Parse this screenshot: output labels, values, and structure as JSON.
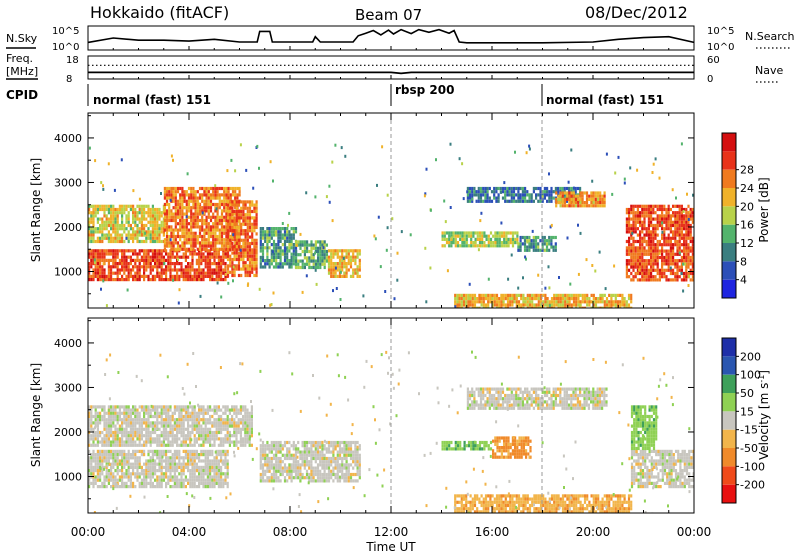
{
  "header": {
    "station": "Hokkaido (fitACF)",
    "beam": "Beam 07",
    "date": "08/Dec/2012"
  },
  "top_labels": {
    "nsky": "N.Sky",
    "nsearch": "N.Search",
    "freq_line1": "Freq.",
    "freq_line2": "[MHz]",
    "nave": "Nave",
    "cpid": "CPID"
  },
  "cpid_modes": [
    {
      "label": "normal (fast) 151",
      "start_hour": 0
    },
    {
      "label": "rbsp 200",
      "start_hour": 12
    },
    {
      "label": "normal (fast) 151",
      "start_hour": 18
    }
  ],
  "colors": {
    "power_scale": [
      "#1f25e0",
      "#2c4fb8",
      "#3a7e80",
      "#53b36c",
      "#b8d24a",
      "#f0b22a",
      "#f07a1f",
      "#e8321a",
      "#d40f10"
    ],
    "velocity_scale": [
      "#e81010",
      "#f04a1a",
      "#f08a2a",
      "#f2b54b",
      "#c8c6bf",
      "#8fd154",
      "#3ea05a",
      "#2a56b0",
      "#1e2fa8"
    ]
  },
  "chart_data": [
    {
      "type": "line",
      "panel": "noise",
      "left_ticks": [
        "10^5",
        "10^0"
      ],
      "right_ticks": [
        "10^5",
        "10^0"
      ],
      "series": [
        {
          "name": "N.Sky",
          "points": [
            [
              0,
              1.5
            ],
            [
              1,
              2.5
            ],
            [
              2,
              2
            ],
            [
              3,
              2
            ],
            [
              4,
              1.8
            ],
            [
              5,
              2.2
            ],
            [
              6,
              1.6
            ],
            [
              6.7,
              1.6
            ],
            [
              6.8,
              4
            ],
            [
              7.2,
              4
            ],
            [
              7.3,
              1.6
            ],
            [
              8.9,
              1.6
            ],
            [
              9,
              2.8
            ],
            [
              9.2,
              1.6
            ],
            [
              10.5,
              1.6
            ],
            [
              10.7,
              3
            ],
            [
              11,
              3.6
            ],
            [
              11.3,
              4.2
            ],
            [
              11.6,
              3.2
            ],
            [
              11.9,
              4.3
            ],
            [
              12.1,
              3.4
            ],
            [
              12.4,
              4.4
            ],
            [
              12.8,
              3.5
            ],
            [
              13.1,
              4.4
            ],
            [
              13.5,
              3.8
            ],
            [
              13.9,
              4.4
            ],
            [
              14.3,
              3.6
            ],
            [
              14.5,
              4.2
            ],
            [
              14.7,
              1.6
            ],
            [
              15,
              1.4
            ],
            [
              18,
              1.4
            ],
            [
              20,
              1.6
            ],
            [
              21,
              2.2
            ],
            [
              22,
              2.6
            ],
            [
              23,
              2.8
            ],
            [
              24,
              1.5
            ]
          ]
        }
      ]
    },
    {
      "type": "line",
      "panel": "frequency",
      "left_ticks": [
        "18",
        "8"
      ],
      "right_ticks": [
        "60",
        "0"
      ],
      "series": [
        {
          "name": "Freq.",
          "points": [
            [
              0,
              10.8
            ],
            [
              12,
              10.8
            ],
            [
              12.4,
              10.3
            ],
            [
              12.8,
              10.8
            ],
            [
              24,
              10.8
            ]
          ]
        },
        {
          "name": "Nave",
          "points": [
            [
              0,
              38
            ],
            [
              24,
              38
            ]
          ]
        }
      ]
    },
    {
      "type": "heatmap",
      "title": "Beam 07",
      "xlabel": "Time UT",
      "ylabel": "Slant Range [km]",
      "colorbar_label": "Power [dB]",
      "colorbar_ticks": [
        4,
        8,
        12,
        16,
        20,
        24,
        28
      ],
      "x_ticks": [
        "00:00",
        "04:00",
        "08:00",
        "12:00",
        "16:00",
        "20:00",
        "00:00"
      ],
      "xlim": [
        0,
        24
      ],
      "y_ticks": [
        1000,
        2000,
        3000,
        4000
      ],
      "ylim": [
        180,
        4560
      ],
      "regions": [
        {
          "t0": 0,
          "t1": 5.5,
          "r0": 800,
          "r1": 1500,
          "level": 29
        },
        {
          "t0": 0,
          "t1": 3,
          "r0": 1700,
          "r1": 2500,
          "level": 20
        },
        {
          "t0": 3,
          "t1": 6,
          "r0": 1500,
          "r1": 2900,
          "level": 26
        },
        {
          "t0": 5.5,
          "t1": 6.7,
          "r0": 900,
          "r1": 2600,
          "level": 27
        },
        {
          "t0": 6.8,
          "t1": 8.2,
          "r0": 1100,
          "r1": 2000,
          "level": 12
        },
        {
          "t0": 8.2,
          "t1": 9.5,
          "r0": 1100,
          "r1": 1700,
          "level": 14
        },
        {
          "t0": 9.5,
          "t1": 10.8,
          "r0": 900,
          "r1": 1500,
          "level": 22
        },
        {
          "t0": 14,
          "t1": 17,
          "r0": 1600,
          "r1": 1900,
          "level": 17
        },
        {
          "t0": 17,
          "t1": 18.5,
          "r0": 1500,
          "r1": 1800,
          "level": 12
        },
        {
          "t0": 15,
          "t1": 19.5,
          "r0": 2600,
          "r1": 2900,
          "level": 9
        },
        {
          "t0": 18.5,
          "t1": 20.5,
          "r0": 2500,
          "r1": 2800,
          "level": 24
        },
        {
          "t0": 21.3,
          "t1": 24,
          "r0": 800,
          "r1": 2500,
          "level": 29
        },
        {
          "t0": 14.5,
          "t1": 21.5,
          "r0": 200,
          "r1": 500,
          "level": 22
        }
      ]
    },
    {
      "type": "heatmap",
      "xlabel": "Time UT",
      "ylabel": "Slant Range [km]",
      "colorbar_label": "Velocity [m s^-1]",
      "colorbar_ticks": [
        -200,
        -100,
        -50,
        -15,
        15,
        50,
        100,
        200
      ],
      "x_ticks": [
        "00:00",
        "04:00",
        "08:00",
        "12:00",
        "16:00",
        "20:00",
        "00:00"
      ],
      "xlim": [
        0,
        24
      ],
      "y_ticks": [
        1000,
        2000,
        3000,
        4000
      ],
      "ylim": [
        180,
        4560
      ],
      "regions": [
        {
          "t0": 0,
          "t1": 5.5,
          "r0": 800,
          "r1": 1600,
          "level": 0
        },
        {
          "t0": 0,
          "t1": 6.5,
          "r0": 1700,
          "r1": 2600,
          "level": 0
        },
        {
          "t0": 6.8,
          "t1": 10.8,
          "r0": 900,
          "r1": 1800,
          "level": 0
        },
        {
          "t0": 14,
          "t1": 16,
          "r0": 1600,
          "r1": 1800,
          "level": 40
        },
        {
          "t0": 16,
          "t1": 17.5,
          "r0": 1400,
          "r1": 1900,
          "level": -60
        },
        {
          "t0": 15,
          "t1": 20.5,
          "r0": 2500,
          "r1": 3000,
          "level": 0
        },
        {
          "t0": 21.5,
          "t1": 24,
          "r0": 800,
          "r1": 1600,
          "level": 0
        },
        {
          "t0": 21.5,
          "t1": 22.5,
          "r0": 1600,
          "r1": 2600,
          "level": 35
        },
        {
          "t0": 14.5,
          "t1": 21.5,
          "r0": 200,
          "r1": 600,
          "level": -40
        }
      ]
    }
  ]
}
